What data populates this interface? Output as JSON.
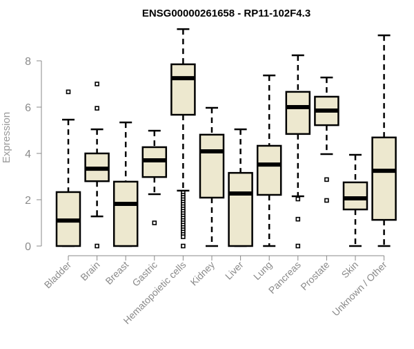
{
  "chart_data": {
    "type": "boxplot",
    "title": "ENSG00000261658 - RP11-102F4.3",
    "xlabel": "",
    "ylabel": "Expression",
    "ylim": [
      0,
      9.4
    ],
    "yticks": [
      0,
      2,
      4,
      6,
      8
    ],
    "grid": false,
    "colors": {
      "box_fill": "#ede8cf",
      "stroke": "#000000",
      "axis": "#888888",
      "tick_label": "#8a8a8a"
    },
    "categories": [
      "Bladder",
      "Brain",
      "Breast",
      "Gastric",
      "Hematopoietic cells",
      "Kidney",
      "Liver",
      "Lung",
      "Pancreas",
      "Prostate",
      "Skin",
      "Unknown / Other"
    ],
    "boxes": [
      {
        "min": 0,
        "q1": 0,
        "median": 1.1,
        "q3": 2.33,
        "max": 5.46,
        "outliers": [
          6.66
        ]
      },
      {
        "min": 1.28,
        "q1": 2.8,
        "median": 3.34,
        "q3": 4.0,
        "max": 5.04,
        "outliers": [
          7.0,
          5.95,
          0
        ]
      },
      {
        "min": 0,
        "q1": 0,
        "median": 1.82,
        "q3": 2.78,
        "max": 5.34,
        "outliers": []
      },
      {
        "min": 2.24,
        "q1": 2.98,
        "median": 3.7,
        "q3": 4.27,
        "max": 4.98,
        "outliers": [
          1.0
        ]
      },
      {
        "min": 2.39,
        "q1": 5.67,
        "median": 7.25,
        "q3": 7.85,
        "max": 9.37,
        "outliers": [
          2.3,
          2.2,
          2.1,
          2.0,
          1.9,
          1.8,
          1.7,
          1.6,
          1.5,
          1.4,
          1.3,
          1.2,
          1.1,
          1.0,
          0.9,
          0.8,
          0.7,
          0.6,
          0.5,
          0.4,
          0
        ]
      },
      {
        "min": 0,
        "q1": 2.09,
        "median": 4.09,
        "q3": 4.81,
        "max": 5.97,
        "outliers": []
      },
      {
        "min": 0,
        "q1": 0,
        "median": 2.27,
        "q3": 3.16,
        "max": 5.04,
        "outliers": []
      },
      {
        "min": 0,
        "q1": 2.21,
        "median": 3.52,
        "q3": 4.33,
        "max": 7.37,
        "outliers": []
      },
      {
        "min": 2.15,
        "q1": 4.84,
        "median": 6.0,
        "q3": 6.66,
        "max": 8.24,
        "outliers": [
          2.03,
          1.16,
          0
        ]
      },
      {
        "min": 3.97,
        "q1": 5.22,
        "median": 5.85,
        "q3": 6.45,
        "max": 7.28,
        "outliers": [
          2.87,
          1.97
        ]
      },
      {
        "min": 0,
        "q1": 1.58,
        "median": 2.06,
        "q3": 2.75,
        "max": 3.94,
        "outliers": []
      },
      {
        "min": 0,
        "q1": 1.13,
        "median": 3.25,
        "q3": 4.69,
        "max": 9.1,
        "outliers": []
      }
    ]
  }
}
